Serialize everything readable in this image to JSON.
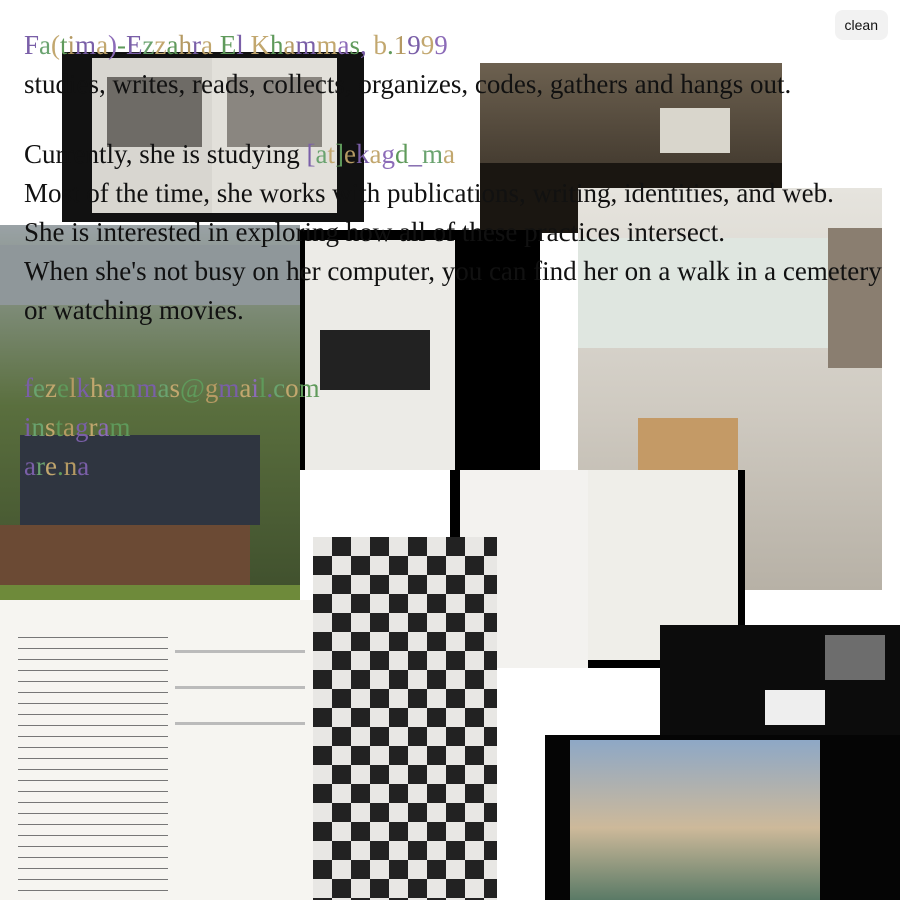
{
  "header": {
    "name": "Fa(tima)-Ezzahra El Khammas, b.1999",
    "button": "clean"
  },
  "bio": {
    "line1": "studies, writes, reads, collects, organizes, codes, gathers and hangs out.",
    "currently": "Currently, she is studying",
    "school": "[at]ekagd_ma",
    "work": "Most of the time, she works with publications, writing, identities, and web.",
    "interest": "She is interested in exploring how all of these practices intersect.",
    "free_time": "When she's not busy on her computer, you can find her on a walk in a cemetery or watching movies."
  },
  "links": [
    "fezelkhammas@gmail.com",
    "instagram",
    "are.na"
  ]
}
